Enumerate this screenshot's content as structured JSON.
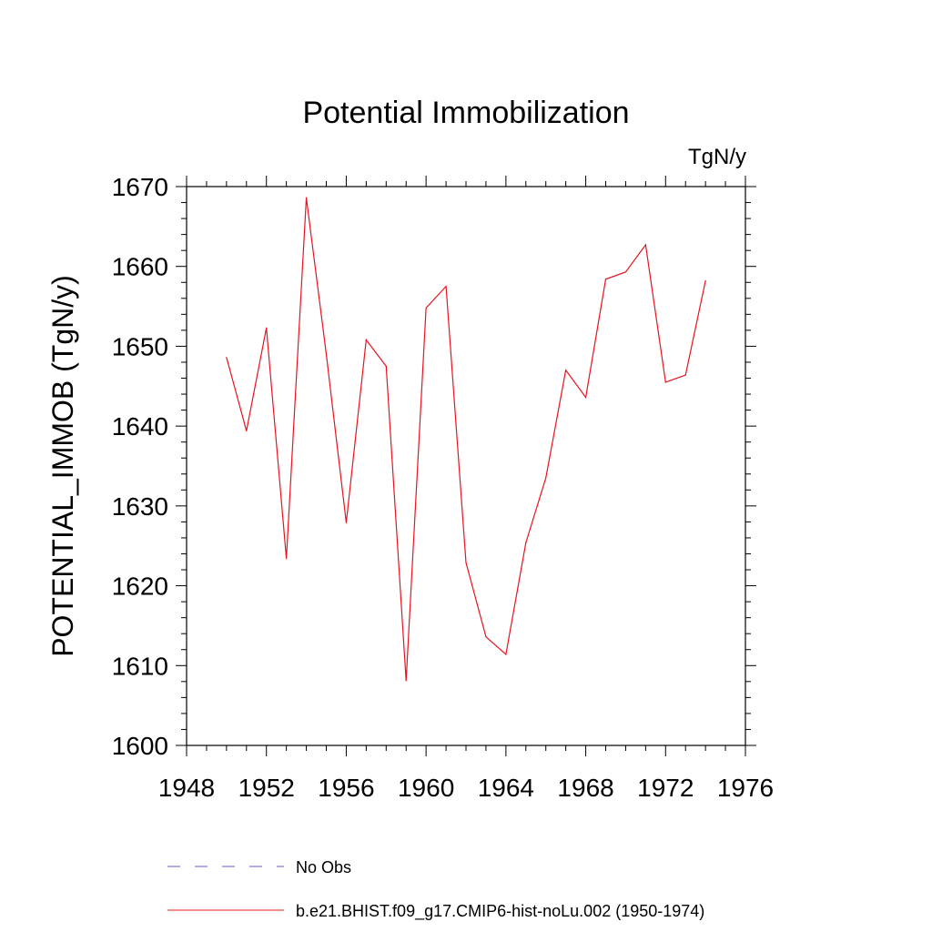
{
  "chart_data": {
    "type": "line",
    "title": "Potential Immobilization",
    "units_label": "TgN/y",
    "ylabel": "POTENTIAL_IMMOB  (TgN/y)",
    "xlabel": "",
    "xlim": [
      1948,
      1976
    ],
    "ylim": [
      1600,
      1670
    ],
    "x_ticks": [
      1948,
      1952,
      1956,
      1960,
      1964,
      1968,
      1972,
      1976
    ],
    "y_ticks": [
      1600,
      1610,
      1620,
      1630,
      1640,
      1650,
      1660,
      1670
    ],
    "grid": false,
    "legend_position": "bottom",
    "series": [
      {
        "name": "No Obs",
        "color": "#6a5acd",
        "dash": "dashed",
        "x": [],
        "y": []
      },
      {
        "name": "b.e21.BHIST.f09_g17.CMIP6-hist-noLu.002 (1950-1974)",
        "color": "#e8131f",
        "dash": "solid",
        "x": [
          1950,
          1951,
          1952,
          1953,
          1954,
          1955,
          1956,
          1957,
          1958,
          1959,
          1960,
          1961,
          1962,
          1963,
          1964,
          1965,
          1966,
          1967,
          1968,
          1969,
          1970,
          1971,
          1972,
          1973,
          1974
        ],
        "y": [
          1648.6,
          1639.4,
          1652.3,
          1623.4,
          1668.6,
          1649.0,
          1627.9,
          1650.8,
          1647.5,
          1608.1,
          1654.8,
          1657.5,
          1622.9,
          1613.6,
          1611.4,
          1625.4,
          1633.5,
          1647.0,
          1643.6,
          1658.4,
          1659.3,
          1662.7,
          1645.5,
          1646.4,
          1658.2
        ]
      }
    ]
  }
}
